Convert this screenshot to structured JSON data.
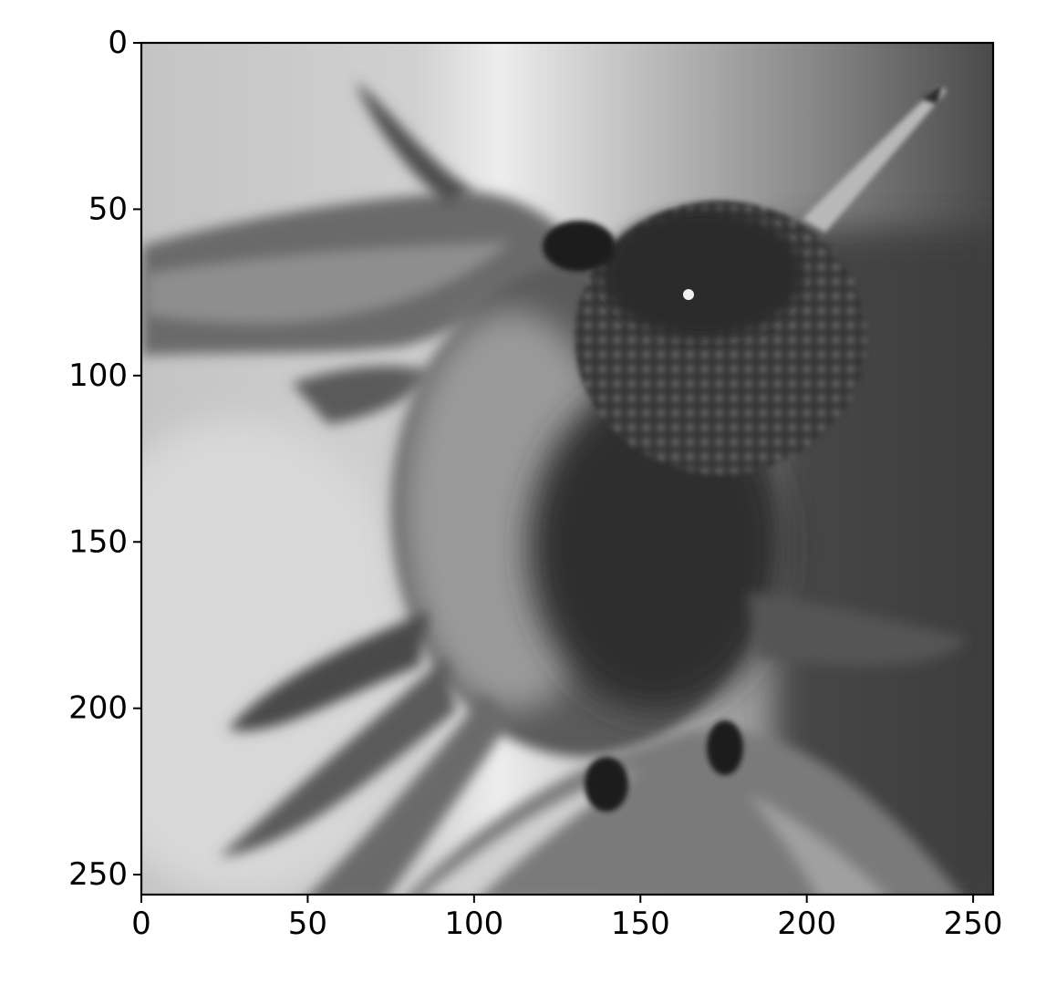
{
  "figure": {
    "type": "image-plot",
    "colormap": "gray",
    "subject": "hummingbird",
    "background_color": "#ffffff",
    "axis_color": "#000000"
  },
  "chart_data": {
    "type": "heatmap",
    "title": "",
    "xlabel": "",
    "ylabel": "",
    "xlim": [
      0,
      256
    ],
    "ylim": [
      256,
      0
    ],
    "x_ticks": [
      0,
      50,
      100,
      150,
      200,
      250
    ],
    "y_ticks": [
      0,
      50,
      100,
      150,
      200,
      250
    ],
    "x_tick_labels": [
      "0",
      "50",
      "100",
      "150",
      "200",
      "250"
    ],
    "y_tick_labels": [
      "0",
      "50",
      "100",
      "150",
      "200",
      "250"
    ],
    "grid": false,
    "image_size": [
      256,
      256
    ]
  }
}
